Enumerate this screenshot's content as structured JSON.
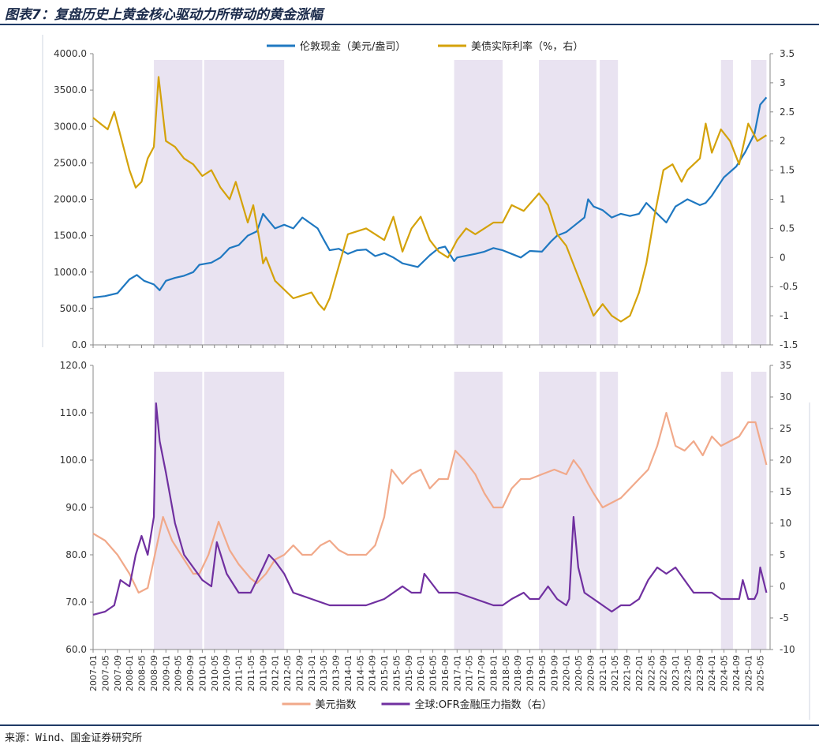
{
  "figure": {
    "title": "图表7：复盘历史上黄金核心驱动力所带动的黄金涨幅",
    "source": "来源：Wind、国金证券研究所"
  },
  "colors": {
    "gold": "#1f78c1",
    "real_rate": "#d4a20a",
    "dxy": "#f1a98a",
    "ofr": "#7030a0",
    "shade": "#e9e3f1"
  },
  "chart_data": [
    {
      "type": "line",
      "panel": "top",
      "legend_placement": "top",
      "grid": false,
      "ylim_left": [
        0,
        4000
      ],
      "ylim_right": [
        -1.5,
        3.5
      ],
      "yticks_left": [
        "4000.0",
        "3500.0",
        "3000.0",
        "2500.0",
        "2000.0",
        "1500.0",
        "1000.0",
        "500.0",
        "0.0"
      ],
      "yticks_right": [
        "3.5",
        "3",
        "2.5",
        "2",
        "1.5",
        "1",
        "0.5",
        "0",
        "-0.5",
        "-1",
        "-1.5"
      ],
      "shaded_periods": [
        [
          2008.67,
          2010.0
        ],
        [
          2010.05,
          2012.25
        ],
        [
          2016.92,
          2018.25
        ],
        [
          2019.25,
          2020.83
        ],
        [
          2020.92,
          2021.42
        ],
        [
          2024.25,
          2024.58
        ],
        [
          2025.08,
          2025.5
        ]
      ],
      "series": [
        {
          "name": "伦敦现金（美元/盎司）",
          "axis": "left",
          "x": [
            2007.0,
            2007.33,
            2007.67,
            2008.0,
            2008.2,
            2008.4,
            2008.67,
            2008.83,
            2009.0,
            2009.25,
            2009.5,
            2009.75,
            2009.92,
            2010.25,
            2010.5,
            2010.75,
            2011.0,
            2011.25,
            2011.5,
            2011.67,
            2011.75,
            2012.0,
            2012.25,
            2012.5,
            2012.75,
            2013.0,
            2013.17,
            2013.33,
            2013.5,
            2013.75,
            2014.0,
            2014.25,
            2014.5,
            2014.75,
            2015.0,
            2015.25,
            2015.5,
            2015.92,
            2016.25,
            2016.5,
            2016.67,
            2016.92,
            2017.0,
            2017.5,
            2017.75,
            2018.0,
            2018.25,
            2018.5,
            2018.75,
            2019.0,
            2019.33,
            2019.58,
            2019.75,
            2020.0,
            2020.25,
            2020.5,
            2020.6,
            2020.75,
            2021.0,
            2021.25,
            2021.5,
            2021.75,
            2022.0,
            2022.2,
            2022.5,
            2022.75,
            2023.0,
            2023.33,
            2023.67,
            2023.83,
            2024.0,
            2024.33,
            2024.67,
            2024.92,
            2025.17,
            2025.33,
            2025.5
          ],
          "values": [
            650,
            670,
            710,
            900,
            960,
            880,
            830,
            750,
            880,
            920,
            950,
            1000,
            1100,
            1130,
            1200,
            1330,
            1370,
            1500,
            1560,
            1800,
            1750,
            1600,
            1650,
            1600,
            1750,
            1660,
            1600,
            1450,
            1300,
            1320,
            1250,
            1300,
            1310,
            1220,
            1260,
            1200,
            1120,
            1070,
            1230,
            1330,
            1350,
            1150,
            1200,
            1250,
            1280,
            1330,
            1300,
            1250,
            1200,
            1290,
            1280,
            1420,
            1500,
            1550,
            1650,
            1750,
            2000,
            1900,
            1850,
            1750,
            1800,
            1770,
            1800,
            1950,
            1800,
            1680,
            1900,
            2000,
            1920,
            1950,
            2050,
            2300,
            2450,
            2650,
            2900,
            3300,
            3400
          ]
        },
        {
          "name": "美债实际利率（%，右）",
          "axis": "right",
          "x": [
            2007.0,
            2007.2,
            2007.4,
            2007.58,
            2007.75,
            2008.0,
            2008.17,
            2008.33,
            2008.5,
            2008.67,
            2008.8,
            2009.0,
            2009.25,
            2009.5,
            2009.75,
            2010.0,
            2010.25,
            2010.5,
            2010.75,
            2010.92,
            2011.25,
            2011.4,
            2011.6,
            2011.67,
            2011.75,
            2012.0,
            2012.5,
            2013.0,
            2013.2,
            2013.35,
            2013.5,
            2014.0,
            2014.5,
            2015.0,
            2015.25,
            2015.5,
            2015.75,
            2016.0,
            2016.25,
            2016.5,
            2016.75,
            2017.0,
            2017.25,
            2017.5,
            2017.75,
            2018.0,
            2018.25,
            2018.5,
            2018.83,
            2019.25,
            2019.5,
            2019.75,
            2020.0,
            2020.25,
            2020.5,
            2020.75,
            2021.0,
            2021.25,
            2021.5,
            2021.75,
            2022.0,
            2022.2,
            2022.42,
            2022.67,
            2022.92,
            2023.17,
            2023.33,
            2023.67,
            2023.83,
            2024.0,
            2024.25,
            2024.5,
            2024.75,
            2025.0,
            2025.25,
            2025.5
          ],
          "values": [
            2.4,
            2.3,
            2.2,
            2.5,
            2.1,
            1.5,
            1.2,
            1.3,
            1.7,
            1.9,
            3.1,
            2.0,
            1.9,
            1.7,
            1.6,
            1.4,
            1.5,
            1.2,
            1.0,
            1.3,
            0.6,
            0.9,
            0.2,
            -0.1,
            0.0,
            -0.4,
            -0.7,
            -0.6,
            -0.8,
            -0.9,
            -0.7,
            0.4,
            0.5,
            0.3,
            0.7,
            0.1,
            0.5,
            0.7,
            0.3,
            0.1,
            0.0,
            0.3,
            0.5,
            0.4,
            0.5,
            0.6,
            0.6,
            0.9,
            0.8,
            1.1,
            0.9,
            0.4,
            0.2,
            -0.2,
            -0.6,
            -1.0,
            -0.8,
            -1.0,
            -1.1,
            -1.0,
            -0.6,
            -0.1,
            0.7,
            1.5,
            1.6,
            1.3,
            1.5,
            1.7,
            2.3,
            1.8,
            2.2,
            2.0,
            1.6,
            2.3,
            2.0,
            2.1
          ]
        }
      ]
    },
    {
      "type": "line",
      "panel": "bottom",
      "legend_placement": "bottom",
      "grid": false,
      "ylim_left": [
        60,
        120
      ],
      "ylim_right": [
        -10,
        35
      ],
      "yticks_left": [
        "120.0",
        "110.0",
        "100.0",
        "90.0",
        "80.0",
        "70.0",
        "60.0"
      ],
      "yticks_right": [
        "35",
        "30",
        "25",
        "20",
        "15",
        "10",
        "5",
        "0",
        "-5",
        "-10"
      ],
      "x_tick_labels": [
        "2007-01",
        "2007-05",
        "2007-09",
        "2008-01",
        "2008-05",
        "2008-09",
        "2009-01",
        "2009-05",
        "2009-09",
        "2010-01",
        "2010-05",
        "2010-09",
        "2011-01",
        "2011-05",
        "2011-09",
        "2012-01",
        "2012-05",
        "2012-09",
        "2013-01",
        "2013-05",
        "2013-09",
        "2014-01",
        "2014-05",
        "2014-09",
        "2015-01",
        "2015-05",
        "2015-09",
        "2016-01",
        "2016-05",
        "2016-09",
        "2017-01",
        "2017-05",
        "2017-09",
        "2018-01",
        "2018-05",
        "2018-09",
        "2019-01",
        "2019-05",
        "2019-09",
        "2020-01",
        "2020-05",
        "2020-09",
        "2021-01",
        "2021-05",
        "2021-09",
        "2022-01",
        "2022-05",
        "2022-09",
        "2023-01",
        "2023-05",
        "2023-09",
        "2024-01",
        "2024-05",
        "2024-09",
        "2025-01",
        "2025-05"
      ],
      "shaded_periods": [
        [
          2008.67,
          2010.0
        ],
        [
          2010.05,
          2012.25
        ],
        [
          2016.92,
          2018.25
        ],
        [
          2019.25,
          2020.83
        ],
        [
          2020.92,
          2021.42
        ],
        [
          2024.25,
          2024.58
        ],
        [
          2025.08,
          2025.5
        ]
      ],
      "series": [
        {
          "name": "美元指数",
          "axis": "left",
          "x": [
            2007.0,
            2007.33,
            2007.67,
            2008.0,
            2008.25,
            2008.5,
            2008.67,
            2008.92,
            2009.17,
            2009.5,
            2009.75,
            2009.92,
            2010.17,
            2010.45,
            2010.75,
            2011.0,
            2011.33,
            2011.5,
            2011.75,
            2012.0,
            2012.25,
            2012.5,
            2012.75,
            2013.0,
            2013.25,
            2013.5,
            2013.75,
            2014.0,
            2014.25,
            2014.5,
            2014.75,
            2015.0,
            2015.2,
            2015.5,
            2015.75,
            2016.0,
            2016.25,
            2016.5,
            2016.75,
            2016.95,
            2017.2,
            2017.5,
            2017.75,
            2018.0,
            2018.25,
            2018.5,
            2018.75,
            2019.0,
            2019.33,
            2019.67,
            2020.0,
            2020.2,
            2020.4,
            2020.6,
            2020.75,
            2021.0,
            2021.25,
            2021.5,
            2021.75,
            2022.0,
            2022.25,
            2022.5,
            2022.75,
            2023.0,
            2023.25,
            2023.5,
            2023.75,
            2024.0,
            2024.25,
            2024.5,
            2024.75,
            2025.0,
            2025.2,
            2025.5
          ],
          "values": [
            84.5,
            83,
            80,
            76,
            72,
            73,
            79,
            88,
            83,
            79,
            76,
            76,
            80,
            87,
            81,
            78,
            75,
            74,
            76,
            79,
            80,
            82,
            80,
            80,
            82,
            83,
            81,
            80,
            80,
            80,
            82,
            88,
            98,
            95,
            97,
            98,
            94,
            96,
            96,
            102,
            100,
            97,
            93,
            90,
            90,
            94,
            96,
            96,
            97,
            98,
            97,
            100,
            98,
            95,
            93,
            90,
            91,
            92,
            94,
            96,
            98,
            103,
            110,
            103,
            102,
            104,
            101,
            105,
            103,
            104,
            105,
            108,
            108,
            99
          ]
        },
        {
          "name": "全球:OFR金融压力指数（右）",
          "axis": "right",
          "x": [
            2007.0,
            2007.33,
            2007.58,
            2007.75,
            2008.0,
            2008.17,
            2008.33,
            2008.5,
            2008.67,
            2008.73,
            2008.83,
            2009.0,
            2009.25,
            2009.5,
            2009.75,
            2010.0,
            2010.25,
            2010.4,
            2010.67,
            2011.0,
            2011.33,
            2011.5,
            2011.67,
            2011.83,
            2012.0,
            2012.25,
            2012.5,
            2013.0,
            2013.5,
            2014.0,
            2014.5,
            2015.0,
            2015.5,
            2015.75,
            2016.0,
            2016.1,
            2016.5,
            2017.0,
            2017.5,
            2018.0,
            2018.25,
            2018.5,
            2018.83,
            2019.0,
            2019.25,
            2019.5,
            2019.75,
            2020.0,
            2020.08,
            2020.2,
            2020.33,
            2020.5,
            2020.75,
            2021.0,
            2021.25,
            2021.5,
            2021.75,
            2022.0,
            2022.25,
            2022.5,
            2022.75,
            2023.0,
            2023.25,
            2023.5,
            2023.75,
            2024.0,
            2024.25,
            2024.5,
            2024.75,
            2024.85,
            2025.0,
            2025.17,
            2025.25,
            2025.33,
            2025.5
          ],
          "values": [
            -4.5,
            -4,
            -3,
            1,
            0,
            5,
            8,
            5,
            11,
            29,
            23,
            18,
            10,
            5,
            3,
            1,
            0,
            7,
            2,
            -1,
            -1,
            1,
            3,
            5,
            4,
            2,
            -1,
            -2,
            -3,
            -3,
            -3,
            -2,
            0,
            -1,
            -1,
            2,
            -1,
            -1,
            -2,
            -3,
            -3,
            -2,
            -1,
            -2,
            -2,
            0,
            -2,
            -3,
            -2,
            11,
            3,
            -1,
            -2,
            -3,
            -4,
            -3,
            -3,
            -2,
            1,
            3,
            2,
            3,
            1,
            -1,
            -1,
            -1,
            -2,
            -2,
            -2,
            1,
            -2,
            -2,
            -1,
            3,
            -1
          ]
        }
      ]
    }
  ]
}
